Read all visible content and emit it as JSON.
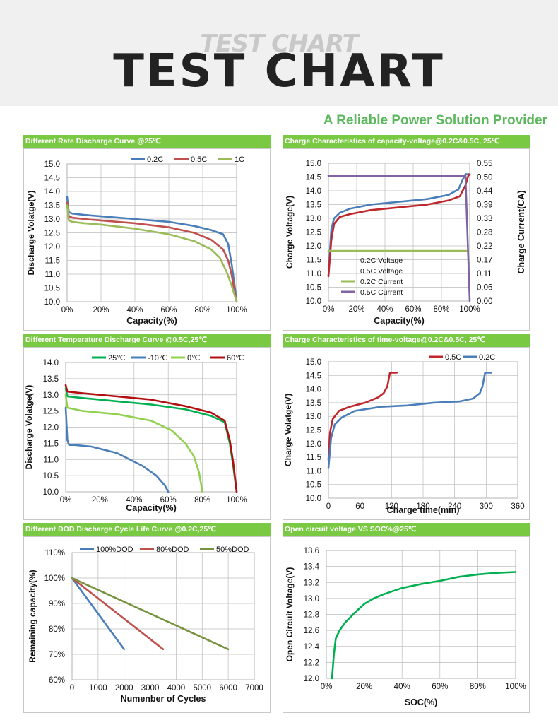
{
  "header": {
    "ghost_title": "TEST CHART",
    "title": "TEST CHART"
  },
  "tagline": "A Reliable Power Solution Provider",
  "colors": {
    "green_bar": "#7ac943",
    "blue": "#4a7ebb",
    "red": "#c0272d",
    "olive": "#9bbb59",
    "purple": "#8064a2",
    "green": "#00b050",
    "lightgreen": "#92d050",
    "darkred": "#b01010",
    "oliveDark": "#76923c",
    "teal": "#00b050"
  },
  "chart_data": [
    {
      "id": "c1",
      "type": "line",
      "title": "Different Rate Discharge Curve @25℃",
      "xlabel": "Capacity(%)",
      "ylabel": "Discharge Volatge(V)",
      "xlim": [
        0,
        100
      ],
      "ylim": [
        10.0,
        15.0
      ],
      "xticks": [
        0,
        20,
        40,
        60,
        80,
        100
      ],
      "xtick_labels": [
        "0%",
        "20%",
        "40%",
        "60%",
        "80%",
        "100%"
      ],
      "yticks": [
        10.0,
        10.5,
        11.0,
        11.5,
        12.0,
        12.5,
        13.0,
        13.5,
        14.0,
        14.5,
        15.0
      ],
      "ytick_labels": [
        "10.0",
        "10.5",
        "11.0",
        "11.5",
        "12.0",
        "12.5",
        "13.0",
        "13.5",
        "14.0",
        "14.5",
        "15.0"
      ],
      "series": [
        {
          "name": "0.2C",
          "color": "#4a7ebb",
          "points": [
            [
              0,
              13.8
            ],
            [
              1,
              13.25
            ],
            [
              3,
              13.2
            ],
            [
              10,
              13.15
            ],
            [
              20,
              13.1
            ],
            [
              40,
              13.0
            ],
            [
              60,
              12.9
            ],
            [
              75,
              12.75
            ],
            [
              85,
              12.6
            ],
            [
              92,
              12.45
            ],
            [
              95,
              12.1
            ],
            [
              97,
              11.4
            ],
            [
              99,
              10.5
            ],
            [
              100,
              10.0
            ]
          ]
        },
        {
          "name": "0.5C",
          "color": "#c0504d",
          "points": [
            [
              0,
              13.6
            ],
            [
              1,
              13.1
            ],
            [
              3,
              13.05
            ],
            [
              10,
              13.0
            ],
            [
              20,
              12.95
            ],
            [
              40,
              12.85
            ],
            [
              60,
              12.7
            ],
            [
              75,
              12.5
            ],
            [
              85,
              12.25
            ],
            [
              92,
              11.9
            ],
            [
              95,
              11.5
            ],
            [
              97,
              11.0
            ],
            [
              99,
              10.3
            ],
            [
              100,
              10.0
            ]
          ]
        },
        {
          "name": "1C",
          "color": "#9bbb59",
          "points": [
            [
              0,
              13.5
            ],
            [
              1,
              12.95
            ],
            [
              3,
              12.9
            ],
            [
              10,
              12.85
            ],
            [
              20,
              12.8
            ],
            [
              40,
              12.65
            ],
            [
              60,
              12.45
            ],
            [
              75,
              12.2
            ],
            [
              85,
              11.9
            ],
            [
              90,
              11.6
            ],
            [
              94,
              11.1
            ],
            [
              97,
              10.6
            ],
            [
              100,
              10.0
            ]
          ]
        }
      ]
    },
    {
      "id": "c2",
      "type": "line",
      "title": "Charge  Characteristics of capacity-voltage@0.2C&0.5C, 25℃",
      "xlabel": "Capacity(%)",
      "ylabel": "Charge Voltage(V)",
      "y2label": "Charge Current(CA)",
      "xlim": [
        0,
        100
      ],
      "ylim": [
        10.0,
        15.0
      ],
      "y2lim": [
        0.0,
        0.55
      ],
      "xticks": [
        0,
        20,
        40,
        60,
        80,
        100
      ],
      "xtick_labels": [
        "0%",
        "20%",
        "40%",
        "60%",
        "80%",
        "100%"
      ],
      "yticks": [
        10.0,
        10.5,
        11.0,
        11.5,
        12.0,
        12.5,
        13.0,
        13.5,
        14.0,
        14.5,
        15.0
      ],
      "ytick_labels": [
        "10.0",
        "10.5",
        "11.0",
        "11.5",
        "12.0",
        "12.5",
        "13.0",
        "13.5",
        "14.0",
        "14.5",
        "15.0"
      ],
      "y2ticks": [
        0.0,
        0.055,
        0.11,
        0.165,
        0.22,
        0.275,
        0.33,
        0.385,
        0.44,
        0.495,
        0.55
      ],
      "y2tick_labels": [
        "0.00",
        "0.06",
        "0.11",
        "0.17",
        "0.22",
        "0.28",
        "0.33",
        "0.39",
        "0.44",
        "0.50",
        "0.55"
      ],
      "series": [
        {
          "name": "0.2C Voltage",
          "color": "#4a7ebb",
          "axis": "left",
          "points": [
            [
              0,
              10.9
            ],
            [
              2,
              12.6
            ],
            [
              4,
              13.0
            ],
            [
              8,
              13.2
            ],
            [
              15,
              13.35
            ],
            [
              30,
              13.5
            ],
            [
              50,
              13.6
            ],
            [
              70,
              13.7
            ],
            [
              85,
              13.85
            ],
            [
              92,
              14.05
            ],
            [
              95,
              14.4
            ],
            [
              97,
              14.6
            ],
            [
              100,
              14.6
            ]
          ]
        },
        {
          "name": "0.5C Voltage",
          "color": "#c0272d",
          "axis": "left",
          "points": [
            [
              0,
              10.9
            ],
            [
              2,
              12.2
            ],
            [
              4,
              12.8
            ],
            [
              8,
              13.05
            ],
            [
              15,
              13.15
            ],
            [
              30,
              13.3
            ],
            [
              50,
              13.4
            ],
            [
              70,
              13.5
            ],
            [
              85,
              13.65
            ],
            [
              93,
              13.8
            ],
            [
              97,
              14.2
            ],
            [
              99,
              14.55
            ],
            [
              100,
              14.6
            ]
          ]
        },
        {
          "name": "0.2C Current",
          "color": "#9bbb59",
          "axis": "right",
          "points": [
            [
              0,
              0.2
            ],
            [
              98,
              0.2
            ]
          ]
        },
        {
          "name": "0.5C Current",
          "color": "#8064a2",
          "axis": "right",
          "points": [
            [
              0,
              0.5
            ],
            [
              97,
              0.5
            ],
            [
              100,
              0.0
            ]
          ]
        }
      ]
    },
    {
      "id": "c3",
      "type": "line",
      "title": "Different Temperature Discharge Curve @0.5C,25℃",
      "xlabel": "Capacity(%)",
      "ylabel": "Discharge Volatge(V)",
      "xlim": [
        0,
        100
      ],
      "ylim": [
        10.0,
        14.0
      ],
      "xticks": [
        0,
        20,
        40,
        60,
        80,
        100
      ],
      "xtick_labels": [
        "0%",
        "20%",
        "40%",
        "60%",
        "80%",
        "100%"
      ],
      "yticks": [
        10.0,
        10.5,
        11.0,
        11.5,
        12.0,
        12.5,
        13.0,
        13.5,
        14.0
      ],
      "ytick_labels": [
        "10.0",
        "10.5",
        "11.0",
        "11.5",
        "12.0",
        "12.5",
        "13.0",
        "13.5",
        "14.0"
      ],
      "series": [
        {
          "name": "25℃",
          "color": "#00b050",
          "points": [
            [
              0,
              13.2
            ],
            [
              1,
              12.95
            ],
            [
              10,
              12.9
            ],
            [
              30,
              12.8
            ],
            [
              50,
              12.7
            ],
            [
              70,
              12.55
            ],
            [
              85,
              12.35
            ],
            [
              93,
              12.15
            ],
            [
              96,
              11.5
            ],
            [
              98,
              10.8
            ],
            [
              100,
              10.0
            ]
          ]
        },
        {
          "name": "-10℃",
          "color": "#4a7ebb",
          "points": [
            [
              0,
              12.6
            ],
            [
              1,
              11.6
            ],
            [
              2,
              11.45
            ],
            [
              5,
              11.45
            ],
            [
              15,
              11.4
            ],
            [
              30,
              11.2
            ],
            [
              45,
              10.8
            ],
            [
              53,
              10.5
            ],
            [
              58,
              10.2
            ],
            [
              60,
              10.0
            ]
          ]
        },
        {
          "name": "0℃",
          "color": "#92d050",
          "points": [
            [
              0,
              13.0
            ],
            [
              1,
              12.6
            ],
            [
              10,
              12.5
            ],
            [
              30,
              12.4
            ],
            [
              50,
              12.2
            ],
            [
              62,
              11.9
            ],
            [
              70,
              11.5
            ],
            [
              75,
              11.1
            ],
            [
              78,
              10.6
            ],
            [
              80,
              10.0
            ]
          ]
        },
        {
          "name": "60℃",
          "color": "#b01010",
          "points": [
            [
              0,
              13.3
            ],
            [
              1,
              13.1
            ],
            [
              10,
              13.05
            ],
            [
              30,
              12.95
            ],
            [
              50,
              12.85
            ],
            [
              70,
              12.65
            ],
            [
              85,
              12.45
            ],
            [
              93,
              12.2
            ],
            [
              96,
              11.6
            ],
            [
              98,
              10.9
            ],
            [
              100,
              10.0
            ]
          ]
        }
      ]
    },
    {
      "id": "c4",
      "type": "line",
      "title": "Charge  Characteristics of time-voltage@0.2C&0.5C, 25℃",
      "xlabel": "Charge time(min)",
      "ylabel": "Charge Volatge(V)",
      "xlim": [
        0,
        360
      ],
      "ylim": [
        10.0,
        15.0
      ],
      "xticks": [
        0,
        60,
        120,
        180,
        240,
        300,
        360
      ],
      "xtick_labels": [
        "0",
        "60",
        "120",
        "180",
        "240",
        "300",
        "360"
      ],
      "yticks": [
        10.0,
        10.5,
        11.0,
        11.5,
        12.0,
        12.5,
        13.0,
        13.5,
        14.0,
        14.5,
        15.0
      ],
      "ytick_labels": [
        "10.0",
        "10.5",
        "11.0",
        "11.5",
        "12.0",
        "12.5",
        "13.0",
        "13.5",
        "14.0",
        "14.5",
        "15.0"
      ],
      "series": [
        {
          "name": "0.5C",
          "color": "#c0272d",
          "points": [
            [
              0,
              11.4
            ],
            [
              3,
              12.4
            ],
            [
              8,
              12.9
            ],
            [
              20,
              13.2
            ],
            [
              40,
              13.35
            ],
            [
              70,
              13.5
            ],
            [
              95,
              13.7
            ],
            [
              105,
              13.85
            ],
            [
              112,
              14.1
            ],
            [
              117,
              14.6
            ],
            [
              130,
              14.6
            ]
          ]
        },
        {
          "name": "0.2C",
          "color": "#4a7ebb",
          "points": [
            [
              0,
              11.1
            ],
            [
              5,
              12.2
            ],
            [
              12,
              12.7
            ],
            [
              25,
              12.95
            ],
            [
              50,
              13.2
            ],
            [
              100,
              13.35
            ],
            [
              150,
              13.4
            ],
            [
              200,
              13.5
            ],
            [
              250,
              13.55
            ],
            [
              275,
              13.65
            ],
            [
              288,
              13.85
            ],
            [
              293,
              14.1
            ],
            [
              298,
              14.6
            ],
            [
              310,
              14.6
            ]
          ]
        }
      ]
    },
    {
      "id": "c5",
      "type": "line",
      "title": "Different DOD Discharge Cycle Life Curve @0.2C,25℃",
      "xlabel": "Numenber of Cycles",
      "ylabel": "Remaining capacity(%)",
      "xlim": [
        0,
        7000
      ],
      "ylim": [
        60,
        110
      ],
      "xticks": [
        0,
        1000,
        2000,
        3000,
        4000,
        5000,
        6000,
        7000
      ],
      "xtick_labels": [
        "0",
        "1000",
        "2000",
        "3000",
        "4000",
        "5000",
        "6000",
        "7000"
      ],
      "yticks": [
        60,
        70,
        80,
        90,
        100,
        110
      ],
      "ytick_labels": [
        "60%",
        "70%",
        "80%",
        "90%",
        "100%",
        "110%"
      ],
      "series": [
        {
          "name": "100%DOD",
          "color": "#4a7ebb",
          "points": [
            [
              0,
              100
            ],
            [
              2000,
              72
            ]
          ]
        },
        {
          "name": "80%DOD",
          "color": "#c0504d",
          "points": [
            [
              0,
              100
            ],
            [
              3500,
              72
            ]
          ]
        },
        {
          "name": "50%DOD",
          "color": "#76923c",
          "points": [
            [
              0,
              100
            ],
            [
              6000,
              72
            ]
          ]
        }
      ]
    },
    {
      "id": "c6",
      "type": "line",
      "title": "Open circuit voltage VS SOC%@25℃",
      "xlabel": "SOC(%)",
      "ylabel": "Open Circuit Voltage(V)",
      "xlim": [
        0,
        100
      ],
      "ylim": [
        12.0,
        13.6
      ],
      "xticks": [
        0,
        20,
        40,
        60,
        80,
        100
      ],
      "xtick_labels": [
        "0%",
        "20%",
        "40%",
        "60%",
        "80%",
        "100%"
      ],
      "yticks": [
        12.0,
        12.2,
        12.4,
        12.6,
        12.8,
        13.0,
        13.2,
        13.4,
        13.6
      ],
      "ytick_labels": [
        "12.0",
        "12.2",
        "12.4",
        "12.6",
        "12.8",
        "13.0",
        "13.2",
        "13.4",
        "13.6"
      ],
      "series": [
        {
          "name": "OCV",
          "color": "#00b050",
          "points": [
            [
              3,
              12.0
            ],
            [
              4,
              12.3
            ],
            [
              5,
              12.5
            ],
            [
              7,
              12.6
            ],
            [
              10,
              12.7
            ],
            [
              15,
              12.82
            ],
            [
              20,
              12.93
            ],
            [
              25,
              13.0
            ],
            [
              30,
              13.05
            ],
            [
              40,
              13.13
            ],
            [
              50,
              13.18
            ],
            [
              60,
              13.22
            ],
            [
              70,
              13.27
            ],
            [
              80,
              13.3
            ],
            [
              90,
              13.32
            ],
            [
              100,
              13.33
            ]
          ]
        }
      ]
    }
  ]
}
